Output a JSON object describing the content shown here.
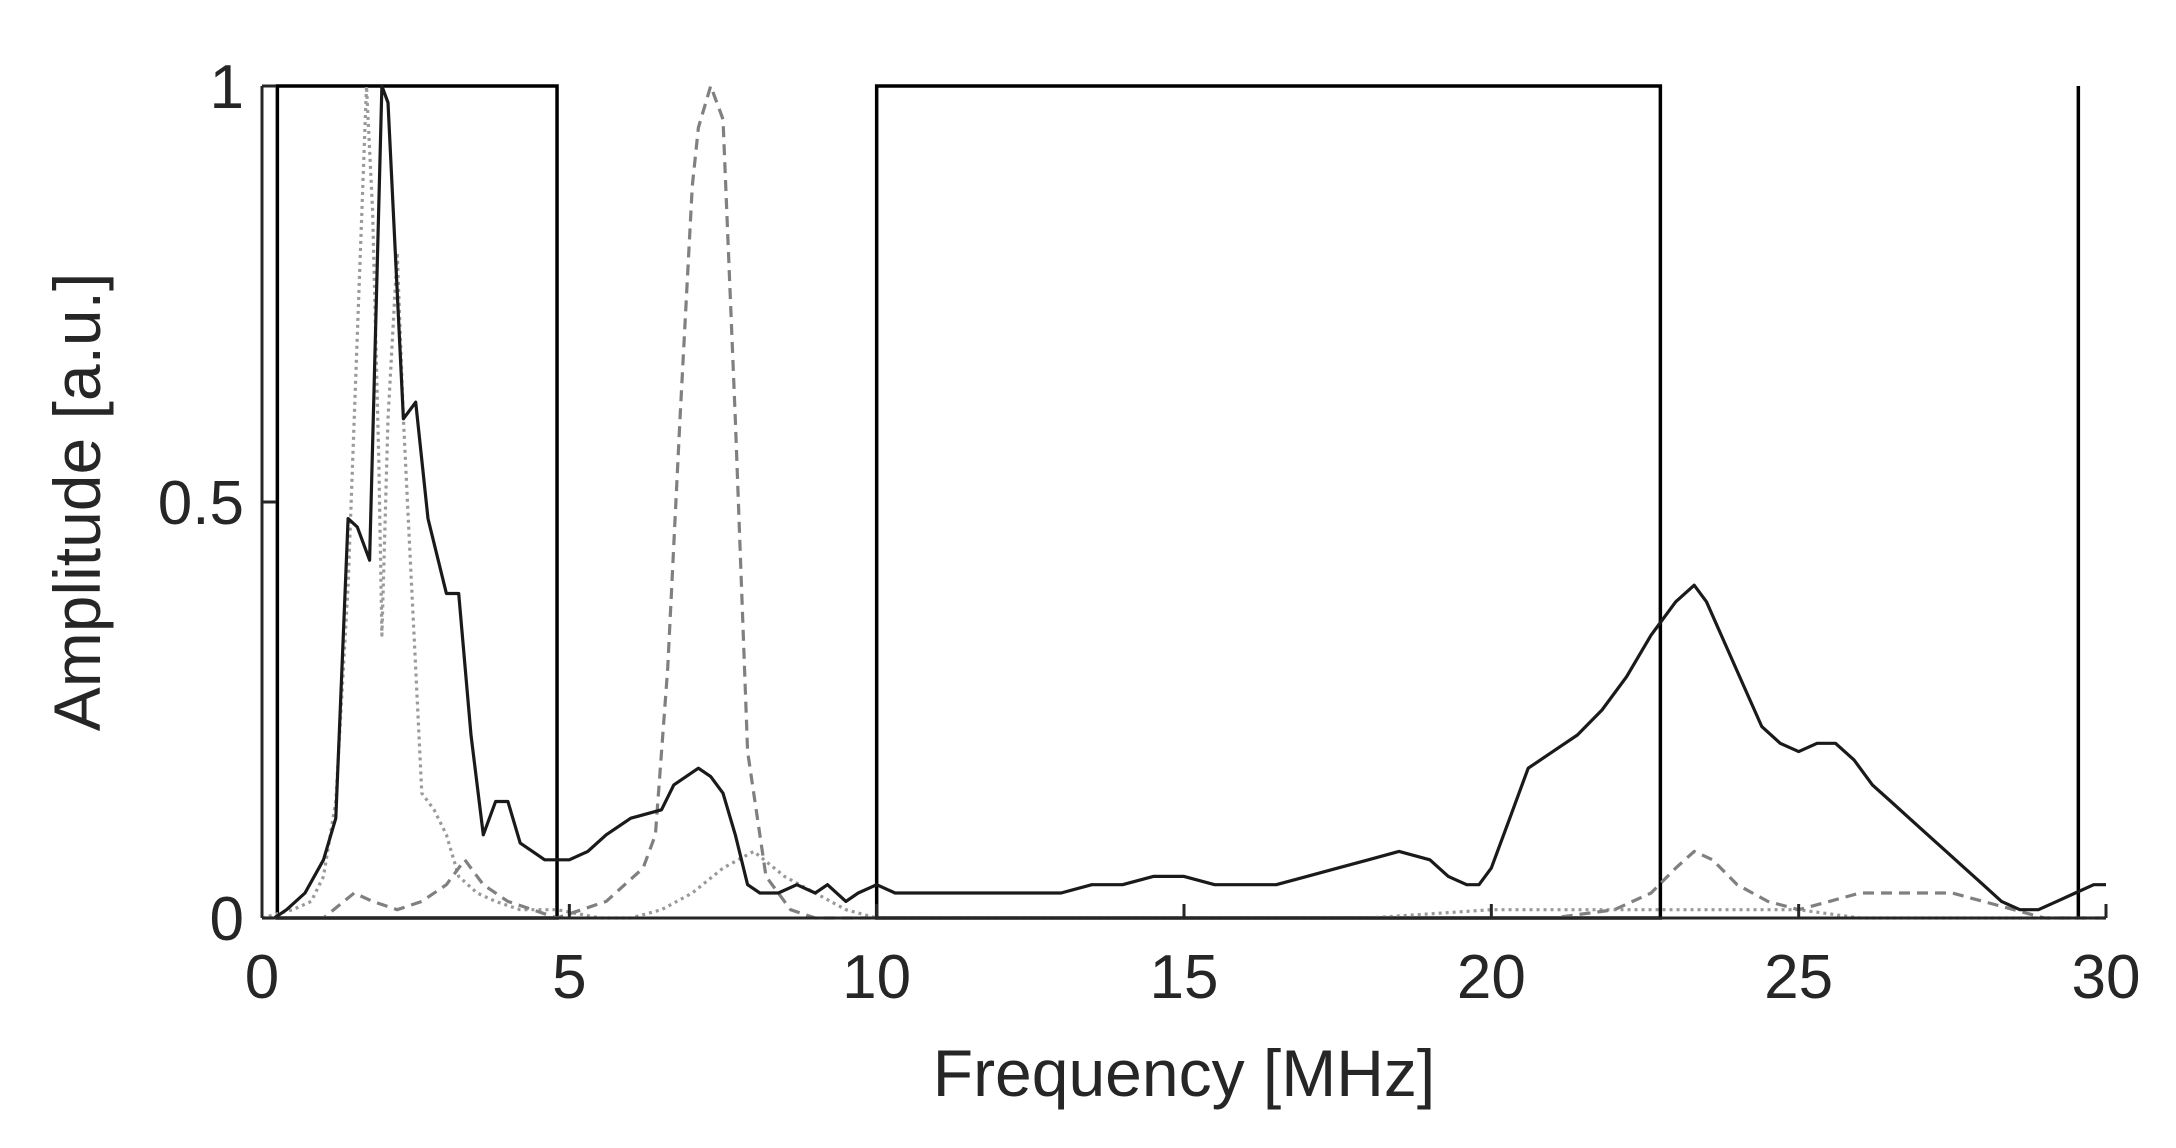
{
  "chart_data": {
    "type": "line",
    "xlabel": "Frequency [MHz]",
    "ylabel": "Amplitude [a.u.]",
    "xlim": [
      0,
      30
    ],
    "ylim": [
      0,
      1
    ],
    "xticks": [
      0,
      5,
      10,
      15,
      20,
      25,
      30
    ],
    "xtick_labels": [
      "0",
      "5",
      "10",
      "15",
      "20",
      "25",
      "30"
    ],
    "yticks": [
      0,
      0.5,
      1
    ],
    "ytick_labels": [
      "0",
      "0.5",
      "1"
    ],
    "grid": false,
    "legend": "none",
    "colors": {
      "solid": "#1a1a1a",
      "dashed": "#808080",
      "dotted": "#9a9a9a",
      "frame": "#000000",
      "axes": "#262626"
    },
    "series": [
      {
        "style": "solid",
        "x": [
          0.2,
          0.4,
          0.7,
          1.0,
          1.2,
          1.4,
          1.55,
          1.75,
          1.95,
          2.05,
          2.3,
          2.5,
          2.7,
          3.0,
          3.2,
          3.4,
          3.6,
          3.8,
          4.0,
          4.2,
          4.4,
          4.6,
          4.8,
          5.0,
          5.3,
          5.6,
          6.0,
          6.5,
          6.7,
          6.9,
          7.1,
          7.3,
          7.5,
          7.7,
          7.9,
          8.1,
          8.4,
          8.7,
          9.0,
          9.2,
          9.5,
          9.7,
          10.0,
          10.3,
          10.7,
          11.0,
          11.5,
          12.0,
          12.5,
          13.0,
          13.5,
          14.0,
          14.5,
          15.0,
          15.5,
          16.0,
          16.5,
          17.0,
          17.5,
          18.0,
          18.5,
          19.0,
          19.3,
          19.6,
          19.8,
          20.0,
          20.3,
          20.6,
          21.0,
          21.4,
          21.8,
          22.2,
          22.6,
          23.0,
          23.3,
          23.5,
          23.8,
          24.1,
          24.4,
          24.7,
          25.0,
          25.3,
          25.6,
          25.9,
          26.2,
          26.5,
          26.8,
          27.1,
          27.4,
          27.7,
          28.0,
          28.3,
          28.6,
          28.9,
          29.2,
          29.5,
          29.8,
          30.0
        ],
        "y": [
          0.0,
          0.01,
          0.03,
          0.07,
          0.12,
          0.48,
          0.47,
          0.43,
          1.0,
          0.98,
          0.6,
          0.62,
          0.48,
          0.39,
          0.39,
          0.22,
          0.1,
          0.14,
          0.14,
          0.09,
          0.08,
          0.07,
          0.07,
          0.07,
          0.08,
          0.1,
          0.12,
          0.13,
          0.16,
          0.17,
          0.18,
          0.17,
          0.15,
          0.1,
          0.04,
          0.03,
          0.03,
          0.04,
          0.03,
          0.04,
          0.02,
          0.03,
          0.04,
          0.03,
          0.03,
          0.03,
          0.03,
          0.03,
          0.03,
          0.03,
          0.04,
          0.04,
          0.05,
          0.05,
          0.04,
          0.04,
          0.04,
          0.05,
          0.06,
          0.07,
          0.08,
          0.07,
          0.05,
          0.04,
          0.04,
          0.06,
          0.12,
          0.18,
          0.2,
          0.22,
          0.25,
          0.29,
          0.34,
          0.38,
          0.4,
          0.38,
          0.33,
          0.28,
          0.23,
          0.21,
          0.2,
          0.21,
          0.21,
          0.19,
          0.16,
          0.14,
          0.12,
          0.1,
          0.08,
          0.06,
          0.04,
          0.02,
          0.01,
          0.01,
          0.02,
          0.03,
          0.04,
          0.04
        ]
      },
      {
        "style": "dashed",
        "x": [
          0.0,
          1.0,
          1.5,
          1.8,
          2.2,
          2.6,
          3.0,
          3.3,
          3.6,
          4.0,
          4.4,
          4.8,
          5.2,
          5.6,
          5.9,
          6.2,
          6.4,
          6.6,
          6.8,
          7.0,
          7.1,
          7.3,
          7.5,
          7.7,
          7.9,
          8.2,
          8.6,
          9.0,
          9.5,
          10.0,
          12.0,
          14.0,
          16.0,
          18.0,
          20.0,
          21.0,
          22.0,
          22.6,
          23.0,
          23.3,
          23.6,
          24.0,
          24.5,
          25.0,
          25.5,
          26.0,
          26.5,
          27.0,
          27.5,
          28.0,
          28.5,
          29.0,
          30.0
        ],
        "y": [
          0.0,
          0.0,
          0.03,
          0.02,
          0.01,
          0.02,
          0.04,
          0.07,
          0.04,
          0.02,
          0.01,
          0.0,
          0.01,
          0.02,
          0.04,
          0.06,
          0.1,
          0.3,
          0.6,
          0.88,
          0.95,
          1.0,
          0.96,
          0.6,
          0.2,
          0.05,
          0.01,
          0.0,
          0.0,
          0.0,
          0.0,
          0.0,
          0.0,
          0.0,
          0.0,
          0.0,
          0.01,
          0.03,
          0.06,
          0.08,
          0.07,
          0.04,
          0.02,
          0.01,
          0.02,
          0.03,
          0.03,
          0.03,
          0.03,
          0.02,
          0.01,
          0.0,
          0.0
        ]
      },
      {
        "style": "dotted",
        "x": [
          0.0,
          0.5,
          0.8,
          1.0,
          1.2,
          1.4,
          1.55,
          1.7,
          1.8,
          1.9,
          1.95,
          2.05,
          2.2,
          2.3,
          2.4,
          2.5,
          2.6,
          2.8,
          3.0,
          3.2,
          3.5,
          3.8,
          4.2,
          4.8,
          5.5,
          6.0,
          6.5,
          7.0,
          7.5,
          8.0,
          8.5,
          9.0,
          9.5,
          10.0,
          12.0,
          15.0,
          18.0,
          20.0,
          21.0,
          22.0,
          23.0,
          24.0,
          25.0,
          26.0,
          27.0,
          28.0,
          30.0
        ],
        "y": [
          0.0,
          0.01,
          0.02,
          0.05,
          0.14,
          0.4,
          0.7,
          1.0,
          0.85,
          0.55,
          0.34,
          0.6,
          0.8,
          0.6,
          0.45,
          0.3,
          0.15,
          0.13,
          0.1,
          0.05,
          0.03,
          0.02,
          0.01,
          0.01,
          0.0,
          0.0,
          0.01,
          0.03,
          0.06,
          0.08,
          0.05,
          0.03,
          0.01,
          0.0,
          0.0,
          0.0,
          0.0,
          0.01,
          0.01,
          0.01,
          0.01,
          0.01,
          0.01,
          0.0,
          0.0,
          0.0,
          0.0
        ]
      }
    ],
    "annotations": {
      "frequency_bands": [
        {
          "x_start": 0.25,
          "x_end": 4.8
        },
        {
          "x_start": 10.0,
          "x_end": 22.75
        }
      ],
      "vertical_lines": [
        29.55
      ]
    }
  }
}
